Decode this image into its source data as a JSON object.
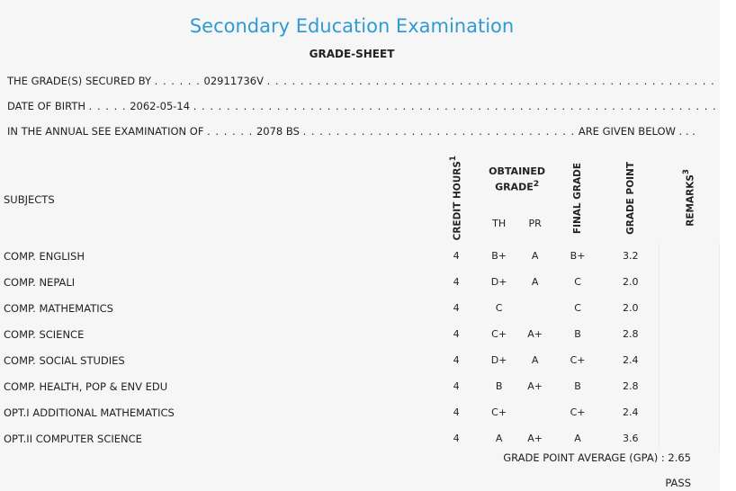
{
  "header": {
    "title": "Secondary Education Examination",
    "subtitle": "GRADE-SHEET"
  },
  "info": {
    "line1_label": "THE GRADE(S) SECURED BY",
    "line1_lead": ". . . . . .",
    "line1_value": "02911736V",
    "line1_trail": ". . . . . . . . . . . . . . . . . . . . . . . . . . . . . . . . . . . . . . . . . . . . . . . . . . . . . . .",
    "line2_label": "DATE OF BIRTH",
    "line2_lead": ". . . . .",
    "line2_value": "2062-05-14",
    "line2_trail": ". . . . . . . . . . . . . . . . . . . . . . . . . . . . . . . . . . . . . . . . . . . . . . . . . . . . . . . . . . . . . . . . . . .",
    "line3_label": "IN THE ANNUAL SEE EXAMINATION OF",
    "line3_lead": ". . . . . .",
    "line3_value": "2078 BS",
    "line3_trail": ". . . . . . . . . . . . . . . . . . . . . . . . . . . . . . . . .",
    "line3_end": "ARE GIVEN BELOW . . ."
  },
  "table": {
    "headers": {
      "subjects": "SUBJECTS",
      "credit_hours": "CREDIT HOURS",
      "credit_sup": "1",
      "obtained_grade": "OBTAINED GRADE",
      "obtained_sup": "2",
      "th": "TH",
      "pr": "PR",
      "final_grade": "FINAL GRADE",
      "grade_point": "GRADE POINT",
      "remarks": "REMARKS",
      "remarks_sup": "3"
    },
    "rows": [
      {
        "subject": "COMP. ENGLISH",
        "credit": "4",
        "th": "B+",
        "pr": "A",
        "final": "B+",
        "gp": "3.2",
        "remarks": ""
      },
      {
        "subject": "COMP. NEPALI",
        "credit": "4",
        "th": "D+",
        "pr": "A",
        "final": "C",
        "gp": "2.0",
        "remarks": ""
      },
      {
        "subject": "COMP. MATHEMATICS",
        "credit": "4",
        "th": "C",
        "pr": "",
        "final": "C",
        "gp": "2.0",
        "remarks": ""
      },
      {
        "subject": "COMP. SCIENCE",
        "credit": "4",
        "th": "C+",
        "pr": "A+",
        "final": "B",
        "gp": "2.8",
        "remarks": ""
      },
      {
        "subject": "COMP. SOCIAL STUDIES",
        "credit": "4",
        "th": "D+",
        "pr": "A",
        "final": "C+",
        "gp": "2.4",
        "remarks": ""
      },
      {
        "subject": "COMP. HEALTH, POP & ENV EDU",
        "credit": "4",
        "th": "B",
        "pr": "A+",
        "final": "B",
        "gp": "2.8",
        "remarks": ""
      },
      {
        "subject": "OPT.I ADDITIONAL MATHEMATICS",
        "credit": "4",
        "th": "C+",
        "pr": "",
        "final": "C+",
        "gp": "2.4",
        "remarks": ""
      },
      {
        "subject": "OPT.II COMPUTER SCIENCE",
        "credit": "4",
        "th": "A",
        "pr": "A+",
        "final": "A",
        "gp": "3.6",
        "remarks": ""
      }
    ]
  },
  "summary": {
    "gpa_label": "GRADE POINT AVERAGE (GPA) :",
    "gpa_value": "2.65",
    "result": "PASS"
  }
}
